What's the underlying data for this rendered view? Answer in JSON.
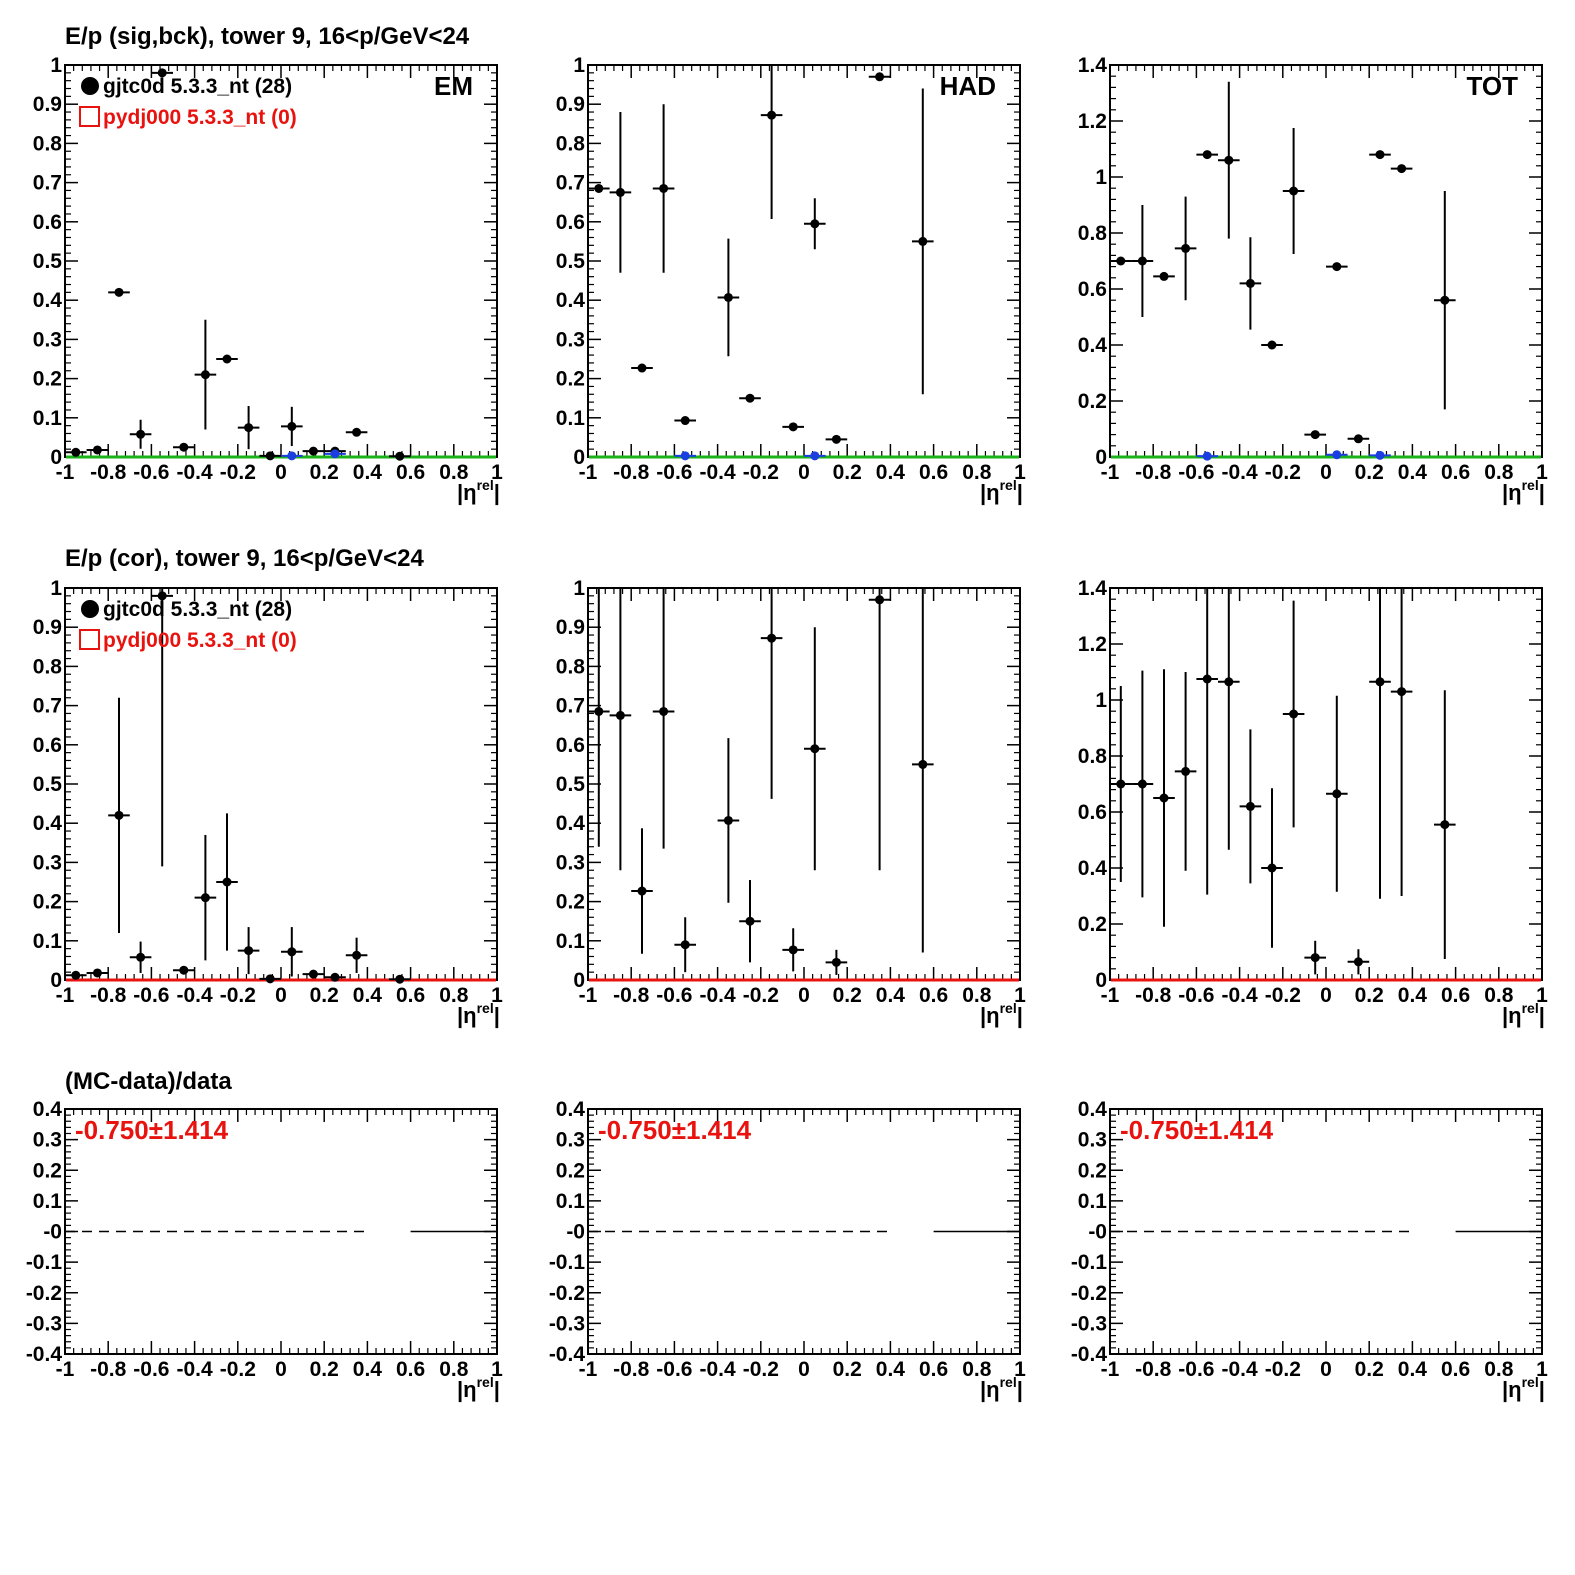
{
  "row_titles": [
    "E/p (sig,bck), tower 9, 16<p/GeV<24",
    "E/p (cor), tower 9, 16<p/GeV<24",
    "(MC-data)/data"
  ],
  "panel_labels": {
    "em": "EM",
    "had": "HAD",
    "tot": "TOT"
  },
  "legend": {
    "data_label": "gjtc0d 5.3.3_nt (28)",
    "mc_label": "pydj000 5.3.3_nt (0)",
    "data_color": "#000000",
    "mc_color": "#e8130f"
  },
  "ratio_text": "-0.750±1.414",
  "xaxis_title": {
    "main": "|η",
    "sup": "rel",
    "close": "|"
  },
  "colors": {
    "data": "#000000",
    "bck": "#1a3ee0",
    "green_line": "#19b319",
    "red_line": "#e8130f",
    "ratio_text": "#e8130f"
  },
  "chart_data": [
    {
      "type": "scatter",
      "id": "em_sigbck",
      "panel_label": "EM",
      "legend": true,
      "xlim": [
        -1,
        1
      ],
      "ylim": [
        0,
        1
      ],
      "xticks": [
        -1,
        -0.8,
        -0.6,
        -0.4,
        -0.2,
        0,
        0.2,
        0.4,
        0.6,
        0.8,
        1
      ],
      "yticks": [
        0,
        0.1,
        0.2,
        0.3,
        0.4,
        0.5,
        0.6,
        0.7,
        0.8,
        0.9,
        1
      ],
      "yticklabels": [
        "0",
        "0.1",
        "0.2",
        "0.3",
        "0.4",
        "0.5",
        "0.6",
        "0.7",
        "0.8",
        "0.9",
        "1"
      ],
      "hline": {
        "y": 0,
        "color": "#19b319"
      },
      "series": [
        {
          "color": "#000000",
          "points": [
            {
              "x": -0.95,
              "y": 0.012,
              "e": 0.003
            },
            {
              "x": -0.85,
              "y": 0.018,
              "e": 0.004
            },
            {
              "x": -0.75,
              "y": 0.42,
              "e": 0.005
            },
            {
              "x": -0.65,
              "y": 0.058,
              "e": 0.037
            },
            {
              "x": -0.55,
              "y": 0.98,
              "e": 0.005
            },
            {
              "x": -0.45,
              "y": 0.025,
              "e": 0.006
            },
            {
              "x": -0.35,
              "y": 0.21,
              "e": 0.14
            },
            {
              "x": -0.25,
              "y": 0.25,
              "e": 0.005
            },
            {
              "x": -0.15,
              "y": 0.075,
              "e": 0.055
            },
            {
              "x": -0.05,
              "y": 0.003,
              "e": 0.002
            },
            {
              "x": 0.05,
              "y": 0.078,
              "e": 0.05
            },
            {
              "x": 0.15,
              "y": 0.015,
              "e": 0.005
            },
            {
              "x": 0.25,
              "y": 0.015,
              "e": 0.005
            },
            {
              "x": 0.35,
              "y": 0.063,
              "e": 0.004
            },
            {
              "x": 0.55,
              "y": 0.002,
              "e": 0.001
            }
          ]
        },
        {
          "color": "#1a3ee0",
          "points": [
            {
              "x": 0.05,
              "y": 0.003,
              "e": 0.002
            },
            {
              "x": 0.25,
              "y": 0.008,
              "e": 0.002
            }
          ]
        }
      ]
    },
    {
      "type": "scatter",
      "id": "had_sigbck",
      "panel_label": "HAD",
      "legend": false,
      "xlim": [
        -1,
        1
      ],
      "ylim": [
        0,
        1
      ],
      "xticks": [
        -1,
        -0.8,
        -0.6,
        -0.4,
        -0.2,
        0,
        0.2,
        0.4,
        0.6,
        0.8,
        1
      ],
      "yticks": [
        0,
        0.1,
        0.2,
        0.3,
        0.4,
        0.5,
        0.6,
        0.7,
        0.8,
        0.9,
        1
      ],
      "yticklabels": [
        "0",
        "0.1",
        "0.2",
        "0.3",
        "0.4",
        "0.5",
        "0.6",
        "0.7",
        "0.8",
        "0.9",
        "1"
      ],
      "hline": {
        "y": 0,
        "color": "#19b319"
      },
      "series": [
        {
          "color": "#000000",
          "points": [
            {
              "x": -0.95,
              "y": 0.685,
              "e": 0.01
            },
            {
              "x": -0.85,
              "y": 0.675,
              "e": 0.205
            },
            {
              "x": -0.75,
              "y": 0.227,
              "e": 0.005
            },
            {
              "x": -0.65,
              "y": 0.685,
              "e": 0.215
            },
            {
              "x": -0.55,
              "y": 0.093,
              "e": 0.005
            },
            {
              "x": -0.35,
              "y": 0.407,
              "e": 0.15
            },
            {
              "x": -0.25,
              "y": 0.15,
              "e": 0.004
            },
            {
              "x": -0.15,
              "y": 0.872,
              "e": 0.265
            },
            {
              "x": -0.05,
              "y": 0.077,
              "e": 0.004
            },
            {
              "x": 0.05,
              "y": 0.595,
              "e": 0.065
            },
            {
              "x": 0.15,
              "y": 0.045,
              "e": 0.004
            },
            {
              "x": 0.35,
              "y": 0.97,
              "e": 0.005
            },
            {
              "x": 0.55,
              "y": 0.55,
              "e": 0.39
            }
          ]
        },
        {
          "color": "#1a3ee0",
          "points": [
            {
              "x": -0.55,
              "y": 0.003,
              "e": 0.002
            },
            {
              "x": 0.05,
              "y": 0.003,
              "e": 0.002
            }
          ]
        }
      ]
    },
    {
      "type": "scatter",
      "id": "tot_sigbck",
      "panel_label": "TOT",
      "legend": false,
      "xlim": [
        -1,
        1
      ],
      "ylim": [
        0,
        1.4
      ],
      "xticks": [
        -1,
        -0.8,
        -0.6,
        -0.4,
        -0.2,
        0,
        0.2,
        0.4,
        0.6,
        0.8,
        1
      ],
      "yticks": [
        0,
        0.2,
        0.4,
        0.6,
        0.8,
        1,
        1.2,
        1.4
      ],
      "yticklabels": [
        "0",
        "0.2",
        "0.4",
        "0.6",
        "0.8",
        "1",
        "1.2",
        "1.4"
      ],
      "hline": {
        "y": 0,
        "color": "#19b319"
      },
      "series": [
        {
          "color": "#000000",
          "points": [
            {
              "x": -0.95,
              "y": 0.7,
              "e": 0.005
            },
            {
              "x": -0.85,
              "y": 0.7,
              "e": 0.2
            },
            {
              "x": -0.75,
              "y": 0.645,
              "e": 0.005
            },
            {
              "x": -0.65,
              "y": 0.745,
              "e": 0.185
            },
            {
              "x": -0.55,
              "y": 1.08,
              "e": 0.005
            },
            {
              "x": -0.45,
              "y": 1.06,
              "e": 0.28
            },
            {
              "x": -0.35,
              "y": 0.62,
              "e": 0.165
            },
            {
              "x": -0.25,
              "y": 0.4,
              "e": 0.005
            },
            {
              "x": -0.15,
              "y": 0.95,
              "e": 0.225
            },
            {
              "x": -0.05,
              "y": 0.08,
              "e": 0.004
            },
            {
              "x": 0.05,
              "y": 0.68,
              "e": 0.005
            },
            {
              "x": 0.15,
              "y": 0.065,
              "e": 0.004
            },
            {
              "x": 0.25,
              "y": 1.08,
              "e": 0.005
            },
            {
              "x": 0.35,
              "y": 1.03,
              "e": 0.005
            },
            {
              "x": 0.55,
              "y": 0.56,
              "e": 0.39
            }
          ]
        },
        {
          "color": "#1a3ee0",
          "points": [
            {
              "x": -0.55,
              "y": 0.003,
              "e": 0.002
            },
            {
              "x": 0.05,
              "y": 0.008,
              "e": 0.002
            },
            {
              "x": 0.25,
              "y": 0.006,
              "e": 0.002
            }
          ]
        }
      ]
    },
    {
      "type": "scatter",
      "id": "em_cor",
      "panel_label": "",
      "legend": true,
      "xlim": [
        -1,
        1
      ],
      "ylim": [
        0,
        1
      ],
      "xticks": [
        -1,
        -0.8,
        -0.6,
        -0.4,
        -0.2,
        0,
        0.2,
        0.4,
        0.6,
        0.8,
        1
      ],
      "yticks": [
        0,
        0.1,
        0.2,
        0.3,
        0.4,
        0.5,
        0.6,
        0.7,
        0.8,
        0.9,
        1
      ],
      "yticklabels": [
        "0",
        "0.1",
        "0.2",
        "0.3",
        "0.4",
        "0.5",
        "0.6",
        "0.7",
        "0.8",
        "0.9",
        "1"
      ],
      "hline": {
        "y": 0,
        "color": "#e8130f"
      },
      "series": [
        {
          "color": "#000000",
          "points": [
            {
              "x": -0.95,
              "y": 0.012,
              "e": 0.003
            },
            {
              "x": -0.85,
              "y": 0.018,
              "e": 0.004
            },
            {
              "x": -0.75,
              "y": 0.42,
              "e": 0.3
            },
            {
              "x": -0.65,
              "y": 0.058,
              "e": 0.04
            },
            {
              "x": -0.55,
              "y": 0.98,
              "e": 0.69
            },
            {
              "x": -0.45,
              "y": 0.025,
              "e": 0.006
            },
            {
              "x": -0.35,
              "y": 0.21,
              "e": 0.16
            },
            {
              "x": -0.25,
              "y": 0.25,
              "e": 0.175
            },
            {
              "x": -0.15,
              "y": 0.075,
              "e": 0.06
            },
            {
              "x": -0.05,
              "y": 0.003,
              "e": 0.002
            },
            {
              "x": 0.05,
              "y": 0.072,
              "e": 0.063
            },
            {
              "x": 0.15,
              "y": 0.015,
              "e": 0.005
            },
            {
              "x": 0.25,
              "y": 0.007,
              "e": 0.005
            },
            {
              "x": 0.35,
              "y": 0.063,
              "e": 0.045
            },
            {
              "x": 0.55,
              "y": 0.002,
              "e": 0.001
            }
          ]
        }
      ]
    },
    {
      "type": "scatter",
      "id": "had_cor",
      "panel_label": "",
      "legend": false,
      "xlim": [
        -1,
        1
      ],
      "ylim": [
        0,
        1
      ],
      "xticks": [
        -1,
        -0.8,
        -0.6,
        -0.4,
        -0.2,
        0,
        0.2,
        0.4,
        0.6,
        0.8,
        1
      ],
      "yticks": [
        0,
        0.1,
        0.2,
        0.3,
        0.4,
        0.5,
        0.6,
        0.7,
        0.8,
        0.9,
        1
      ],
      "yticklabels": [
        "0",
        "0.1",
        "0.2",
        "0.3",
        "0.4",
        "0.5",
        "0.6",
        "0.7",
        "0.8",
        "0.9",
        "1"
      ],
      "hline": {
        "y": 0,
        "color": "#e8130f"
      },
      "series": [
        {
          "color": "#000000",
          "points": [
            {
              "x": -0.95,
              "y": 0.685,
              "e": 0.345
            },
            {
              "x": -0.85,
              "y": 0.675,
              "e": 0.395
            },
            {
              "x": -0.75,
              "y": 0.227,
              "e": 0.16
            },
            {
              "x": -0.65,
              "y": 0.685,
              "e": 0.35
            },
            {
              "x": -0.55,
              "y": 0.09,
              "e": 0.07
            },
            {
              "x": -0.35,
              "y": 0.407,
              "e": 0.21
            },
            {
              "x": -0.25,
              "y": 0.15,
              "e": 0.105
            },
            {
              "x": -0.15,
              "y": 0.872,
              "e": 0.41
            },
            {
              "x": -0.05,
              "y": 0.077,
              "e": 0.055
            },
            {
              "x": 0.05,
              "y": 0.59,
              "e": 0.31
            },
            {
              "x": 0.15,
              "y": 0.045,
              "e": 0.032
            },
            {
              "x": 0.35,
              "y": 0.97,
              "e": 0.69
            },
            {
              "x": 0.55,
              "y": 0.55,
              "e": 0.48
            }
          ]
        }
      ]
    },
    {
      "type": "scatter",
      "id": "tot_cor",
      "panel_label": "",
      "legend": false,
      "xlim": [
        -1,
        1
      ],
      "ylim": [
        0,
        1.4
      ],
      "xticks": [
        -1,
        -0.8,
        -0.6,
        -0.4,
        -0.2,
        0,
        0.2,
        0.4,
        0.6,
        0.8,
        1
      ],
      "yticks": [
        0,
        0.2,
        0.4,
        0.6,
        0.8,
        1,
        1.2,
        1.4
      ],
      "yticklabels": [
        "0",
        "0.2",
        "0.4",
        "0.6",
        "0.8",
        "1",
        "1.2",
        "1.4"
      ],
      "hline": {
        "y": 0,
        "color": "#e8130f"
      },
      "series": [
        {
          "color": "#000000",
          "points": [
            {
              "x": -0.95,
              "y": 0.7,
              "e": 0.35
            },
            {
              "x": -0.85,
              "y": 0.7,
              "e": 0.405
            },
            {
              "x": -0.75,
              "y": 0.65,
              "e": 0.46
            },
            {
              "x": -0.65,
              "y": 0.745,
              "e": 0.355
            },
            {
              "x": -0.55,
              "y": 1.075,
              "e": 0.77
            },
            {
              "x": -0.45,
              "y": 1.065,
              "e": 0.6
            },
            {
              "x": -0.35,
              "y": 0.62,
              "e": 0.275
            },
            {
              "x": -0.25,
              "y": 0.4,
              "e": 0.285
            },
            {
              "x": -0.15,
              "y": 0.95,
              "e": 0.405
            },
            {
              "x": -0.05,
              "y": 0.08,
              "e": 0.06
            },
            {
              "x": 0.05,
              "y": 0.665,
              "e": 0.35
            },
            {
              "x": 0.15,
              "y": 0.065,
              "e": 0.045
            },
            {
              "x": 0.25,
              "y": 1.065,
              "e": 0.775
            },
            {
              "x": 0.35,
              "y": 1.03,
              "e": 0.73
            },
            {
              "x": 0.55,
              "y": 0.555,
              "e": 0.48
            }
          ]
        }
      ]
    },
    {
      "type": "line",
      "id": "em_ratio",
      "panel_label": "",
      "legend": false,
      "xlim": [
        -1,
        1
      ],
      "ylim": [
        -0.4,
        0.4
      ],
      "xticks": [
        -1,
        -0.8,
        -0.6,
        -0.4,
        -0.2,
        0,
        0.2,
        0.4,
        0.6,
        0.8,
        1
      ],
      "yticks": [
        -0.4,
        -0.3,
        -0.2,
        -0.1,
        0,
        0.1,
        0.2,
        0.3,
        0.4
      ],
      "yticklabels": [
        "-0.4",
        "-0.3",
        "-0.2",
        "-0.1",
        "-0",
        "0.1",
        "0.2",
        "0.3",
        "0.4"
      ],
      "dashed_line": {
        "y": 0,
        "x_from": -1,
        "x_to": 0.4
      },
      "solid_line": {
        "y": 0,
        "x_from": 0.6,
        "x_to": 1
      },
      "ratio_text": true
    },
    {
      "type": "line",
      "id": "had_ratio",
      "panel_label": "",
      "legend": false,
      "xlim": [
        -1,
        1
      ],
      "ylim": [
        -0.4,
        0.4
      ],
      "xticks": [
        -1,
        -0.8,
        -0.6,
        -0.4,
        -0.2,
        0,
        0.2,
        0.4,
        0.6,
        0.8,
        1
      ],
      "yticks": [
        -0.4,
        -0.3,
        -0.2,
        -0.1,
        0,
        0.1,
        0.2,
        0.3,
        0.4
      ],
      "yticklabels": [
        "-0.4",
        "-0.3",
        "-0.2",
        "-0.1",
        "-0",
        "0.1",
        "0.2",
        "0.3",
        "0.4"
      ],
      "dashed_line": {
        "y": 0,
        "x_from": -1,
        "x_to": 0.4
      },
      "solid_line": {
        "y": 0,
        "x_from": 0.6,
        "x_to": 1
      },
      "ratio_text": true
    },
    {
      "type": "line",
      "id": "tot_ratio",
      "panel_label": "",
      "legend": false,
      "xlim": [
        -1,
        1
      ],
      "ylim": [
        -0.4,
        0.4
      ],
      "xticks": [
        -1,
        -0.8,
        -0.6,
        -0.4,
        -0.2,
        0,
        0.2,
        0.4,
        0.6,
        0.8,
        1
      ],
      "yticks": [
        -0.4,
        -0.3,
        -0.2,
        -0.1,
        0,
        0.1,
        0.2,
        0.3,
        0.4
      ],
      "yticklabels": [
        "-0.4",
        "-0.3",
        "-0.2",
        "-0.1",
        "-0",
        "0.1",
        "0.2",
        "0.3",
        "0.4"
      ],
      "dashed_line": {
        "y": 0,
        "x_from": -1,
        "x_to": 0.4
      },
      "solid_line": {
        "y": 0,
        "x_from": 0.6,
        "x_to": 1
      },
      "ratio_text": true
    }
  ]
}
